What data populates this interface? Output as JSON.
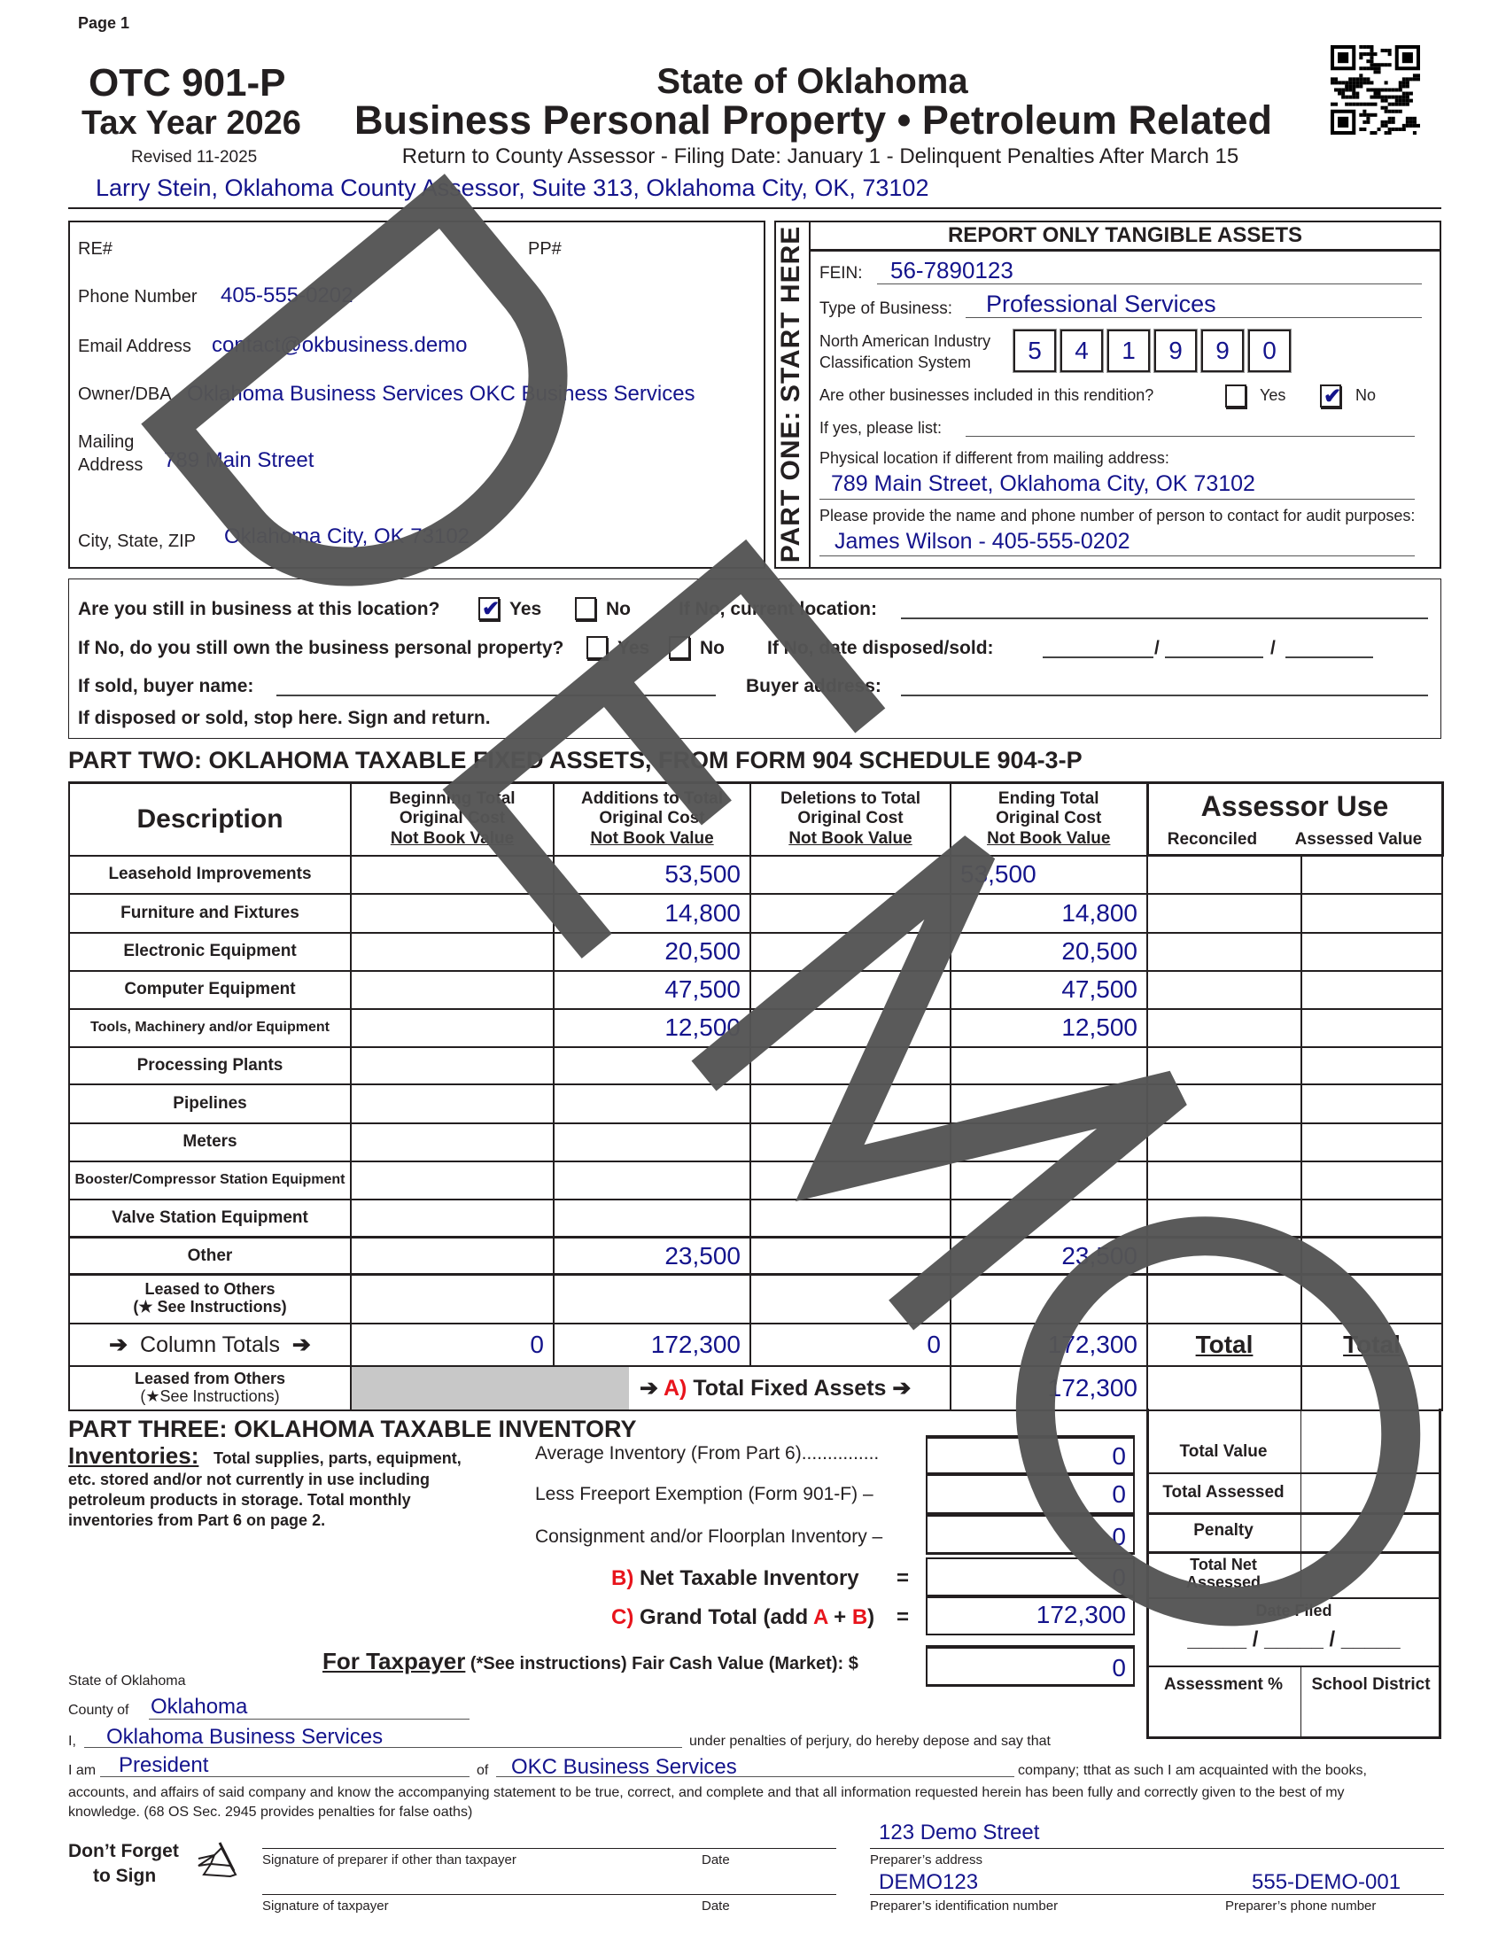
{
  "header": {
    "page_label": "Page 1",
    "form_number": "OTC 901-P",
    "tax_year": "Tax Year 2026",
    "revised": "Revised 11-2025",
    "state_title": "State of Oklahoma",
    "main_title": "Business Personal Property • Petroleum Related",
    "filing_note": "Return to County Assessor - Filing Date: January 1 - Delinquent Penalties After March 15",
    "assessor_address": "Larry Stein, Oklahoma County Assessor, Suite 313, Oklahoma City, OK, 73102",
    "qr_icon": "qr-code"
  },
  "watermark": "DEMO",
  "part_one_left": {
    "re_label": "RE#",
    "pp_label": "PP#",
    "phone_label": "Phone Number",
    "phone_value": "405-555-0202",
    "email_label": "Email Address",
    "email_value": "contact@okbusiness.demo",
    "owner_label": "Owner/DBA",
    "owner_value": "Oklahoma Business Services OKC Business Services",
    "mailing_label_1": "Mailing",
    "mailing_label_2": "Address",
    "mailing_value": "789 Main Street",
    "city_label": "City, State, ZIP",
    "city_value": "Oklahoma City, OK 73102"
  },
  "part_one_right": {
    "side_label": "PART ONE: START HERE",
    "heading": "REPORT ONLY TANGIBLE ASSETS",
    "fein_label": "FEIN:",
    "fein_value": "56-7890123",
    "business_type_label": "Type of Business:",
    "business_type_value": "Professional Services",
    "naics_label_1": "North American Industry",
    "naics_label_2": "Classification System",
    "naics_digits": [
      "5",
      "4",
      "1",
      "9",
      "9",
      "0"
    ],
    "other_businesses_label": "Are other businesses included in this rendition?",
    "yes_label": "Yes",
    "no_label": "No",
    "other_businesses_yes": false,
    "other_businesses_no": true,
    "if_yes_label": "If yes, please list:",
    "physical_location_label": "Physical location if different from mailing address:",
    "physical_location_value": "789 Main Street, Oklahoma City, OK 73102",
    "audit_contact_label": "Please provide the name and phone number of person to contact for audit purposes:",
    "audit_contact_value": "James Wilson - 405-555-0202",
    "check_mark": "✔"
  },
  "status_box": {
    "still_in_business_label": "Are you still in business at this location?",
    "yes_label": "Yes",
    "no_label": "No",
    "still_in_business_yes": true,
    "current_location_label": "If No, current location:",
    "still_own_label": "If No, do you still own the business personal property?",
    "date_disposed_label": "If No, date disposed/sold:",
    "date_separator": "/",
    "buyer_name_label": "If sold, buyer name:",
    "buyer_address_label": "Buyer address:",
    "stop_note": "If disposed or sold, stop here.  Sign and return."
  },
  "part_two": {
    "heading": "PART TWO: OKLAHOMA TAXABLE FIXED ASSETS, FROM FORM 904 SCHEDULE 904-3-P",
    "columns": {
      "description": "Description",
      "beginning": [
        "Beginning Total",
        "Original Cost",
        "Not Book Value"
      ],
      "additions": [
        "Additions to Total",
        "Original Cost",
        "Not Book Value"
      ],
      "deletions": [
        "Deletions to Total",
        "Original Cost",
        "Not Book Value"
      ],
      "ending": [
        "Ending Total",
        "Original Cost",
        "Not Book Value"
      ],
      "assessor_use": "Assessor Use",
      "reconciled": "Reconciled",
      "assessed_value": "Assessed Value"
    },
    "rows": [
      {
        "label": "Leasehold Improvements",
        "beginning": "",
        "additions": "53,500",
        "deletions": "",
        "ending": "53,500"
      },
      {
        "label": "Furniture and Fixtures",
        "beginning": "",
        "additions": "14,800",
        "deletions": "",
        "ending": "14,800"
      },
      {
        "label": "Electronic Equipment",
        "beginning": "",
        "additions": "20,500",
        "deletions": "",
        "ending": "20,500"
      },
      {
        "label": "Computer Equipment",
        "beginning": "",
        "additions": "47,500",
        "deletions": "",
        "ending": "47,500"
      },
      {
        "label": "Tools, Machinery and/or Equipment",
        "beginning": "",
        "additions": "12,500",
        "deletions": "",
        "ending": "12,500"
      },
      {
        "label": "Processing Plants",
        "beginning": "",
        "additions": "",
        "deletions": "",
        "ending": ""
      },
      {
        "label": "Pipelines",
        "beginning": "",
        "additions": "",
        "deletions": "",
        "ending": ""
      },
      {
        "label": "Meters",
        "beginning": "",
        "additions": "",
        "deletions": "",
        "ending": ""
      },
      {
        "label": "Booster/Compressor Station Equipment",
        "beginning": "",
        "additions": "",
        "deletions": "",
        "ending": ""
      },
      {
        "label": "Valve Station Equipment",
        "beginning": "",
        "additions": "",
        "deletions": "",
        "ending": ""
      },
      {
        "label": "Other",
        "beginning": "",
        "additions": "23,500",
        "deletions": "",
        "ending": "23,500"
      }
    ],
    "leased_to_others_1": "Leased to Others",
    "leased_to_others_2": "(★ See Instructions)",
    "column_totals_label": "Column Totals",
    "arrow": "➔",
    "totals": {
      "beginning": "0",
      "additions": "172,300",
      "deletions": "0",
      "ending": "172,300"
    },
    "total_label": "Total",
    "leased_from_others_1": "Leased from Others",
    "leased_from_others_2": "(★See Instructions)",
    "total_fixed_assets_prefix": "A)",
    "total_fixed_assets_label": "Total Fixed Assets",
    "total_fixed_assets_value": "172,300"
  },
  "part_three": {
    "heading": "PART THREE: OKLAHOMA TAXABLE INVENTORY",
    "inventories_title": "Inventories:",
    "inventories_text_1": "Total supplies, parts, equipment,",
    "inventories_text_2": "etc. stored and/or not currently in use including",
    "inventories_text_3": "petroleum products in storage. Total monthly",
    "inventories_text_4": "inventories from Part 6 on page 2.",
    "average_label": "Average Inventory (From Part 6)...............",
    "average_value": "0",
    "freeport_label": "Less Freeport Exemption (Form 901-F)   –",
    "freeport_value": "0",
    "consignment_label": "Consignment and/or Floorplan Inventory  –",
    "consignment_value": "0",
    "net_prefix": "B)",
    "net_label": "Net Taxable Inventory",
    "equals": "=",
    "net_value": "0",
    "grand_prefix": "C)",
    "grand_label_1": "Grand Total (add",
    "grand_a": "A",
    "grand_plus": "+",
    "grand_b": "B",
    "grand_close": ")",
    "grand_value": "172,300",
    "taxpayer_title": "For Taxpayer",
    "taxpayer_label": "(*See instructions) Fair Cash Value (Market): $",
    "fair_cash_value": "0"
  },
  "assessor_box": {
    "total_value": "Total Value",
    "total_assessed": "Total Assessed",
    "penalty": "Penalty",
    "total_net_1": "Total Net",
    "total_net_2": "Assessed",
    "date_filed": "Date Filed",
    "date_blank": "_____ / _____ / _____",
    "assessment_pct": "Assessment %",
    "school_district": "School District"
  },
  "oath": {
    "state_label": "State of Oklahoma",
    "county_label": "County of",
    "county_value": "Oklahoma",
    "i_label": "I,",
    "name_value": "Oklahoma Business Services",
    "perjury_text": "under penalties of perjury, do hereby depose and say that",
    "i_am_label": "I am",
    "title_value": "President",
    "of_label": "of",
    "company_value": "OKC Business Services",
    "company_text": "company; tthat as such I am acquainted with the books,",
    "text_line_2": "accounts, and affairs of said company and know the accompanying statement to be true, correct, and complete and that all information requested herein has been fully and correctly given to the best of my",
    "text_line_3": "knowledge. (68 OS Sec. 2945 provides penalties for false oaths)"
  },
  "signatures": {
    "reminder_1": "Don’t Forget",
    "reminder_2": "to Sign",
    "preparer_signature_label": "Signature of preparer if other than taxpayer",
    "date_label": "Date",
    "taxpayer_signature_label": "Signature of taxpayer",
    "preparer_address_value": "123 Demo Street",
    "preparer_address_label": "Preparer’s address",
    "preparer_id_value": "DEMO123",
    "preparer_id_label": "Preparer’s identification number",
    "preparer_phone_value": "555-DEMO-001",
    "preparer_phone_label": "Preparer’s phone number"
  }
}
